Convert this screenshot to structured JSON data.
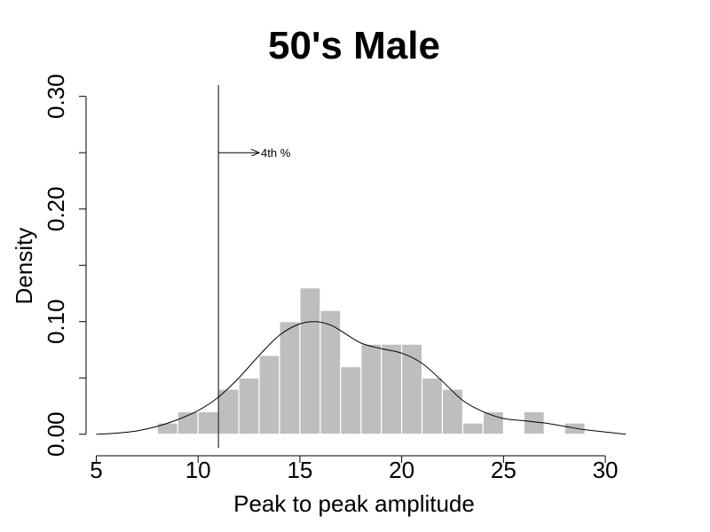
{
  "chart_data": {
    "type": "bar",
    "title": "50's Male",
    "xlabel": "Peak to peak amplitude",
    "ylabel": "Density",
    "xlim": [
      4.5,
      31
    ],
    "ylim": [
      -0.012,
      0.31
    ],
    "x_ticks": [
      5,
      10,
      15,
      20,
      25,
      30
    ],
    "y_ticks": [
      0.0,
      0.05,
      0.1,
      0.15,
      0.2,
      0.25,
      0.3
    ],
    "y_tick_labels": [
      "0.00",
      "",
      "0.10",
      "",
      "0.20",
      "",
      "0.30"
    ],
    "bin_width": 1,
    "bins": [
      {
        "x0": 8,
        "value": 0.01
      },
      {
        "x0": 9,
        "value": 0.02
      },
      {
        "x0": 10,
        "value": 0.02
      },
      {
        "x0": 11,
        "value": 0.04
      },
      {
        "x0": 12,
        "value": 0.05
      },
      {
        "x0": 13,
        "value": 0.07
      },
      {
        "x0": 14,
        "value": 0.1
      },
      {
        "x0": 15,
        "value": 0.13
      },
      {
        "x0": 16,
        "value": 0.11
      },
      {
        "x0": 17,
        "value": 0.06
      },
      {
        "x0": 18,
        "value": 0.08
      },
      {
        "x0": 19,
        "value": 0.08
      },
      {
        "x0": 20,
        "value": 0.08
      },
      {
        "x0": 21,
        "value": 0.05
      },
      {
        "x0": 22,
        "value": 0.04
      },
      {
        "x0": 23,
        "value": 0.01
      },
      {
        "x0": 24,
        "value": 0.02
      },
      {
        "x0": 26,
        "value": 0.02
      },
      {
        "x0": 28,
        "value": 0.01
      }
    ],
    "density_curve": {
      "x": [
        5,
        6,
        7,
        8,
        9,
        10,
        11,
        12,
        13,
        14,
        15,
        15.8,
        16.5,
        17,
        18,
        19,
        20,
        21,
        22,
        23,
        24,
        25,
        26,
        27,
        28,
        29,
        30,
        31
      ],
      "y": [
        0.0,
        0.001,
        0.003,
        0.007,
        0.013,
        0.021,
        0.033,
        0.05,
        0.07,
        0.088,
        0.098,
        0.1,
        0.097,
        0.092,
        0.081,
        0.076,
        0.072,
        0.063,
        0.047,
        0.03,
        0.02,
        0.014,
        0.012,
        0.01,
        0.007,
        0.004,
        0.002,
        0.0
      ]
    },
    "vline": {
      "x": 11
    },
    "annotation": {
      "text": "4th %",
      "x_start": 11,
      "x_end": 13,
      "y": 0.25
    },
    "bar_color": "#bebebe",
    "bar_edge_color": "#ffffff",
    "line_color": "#000000"
  }
}
